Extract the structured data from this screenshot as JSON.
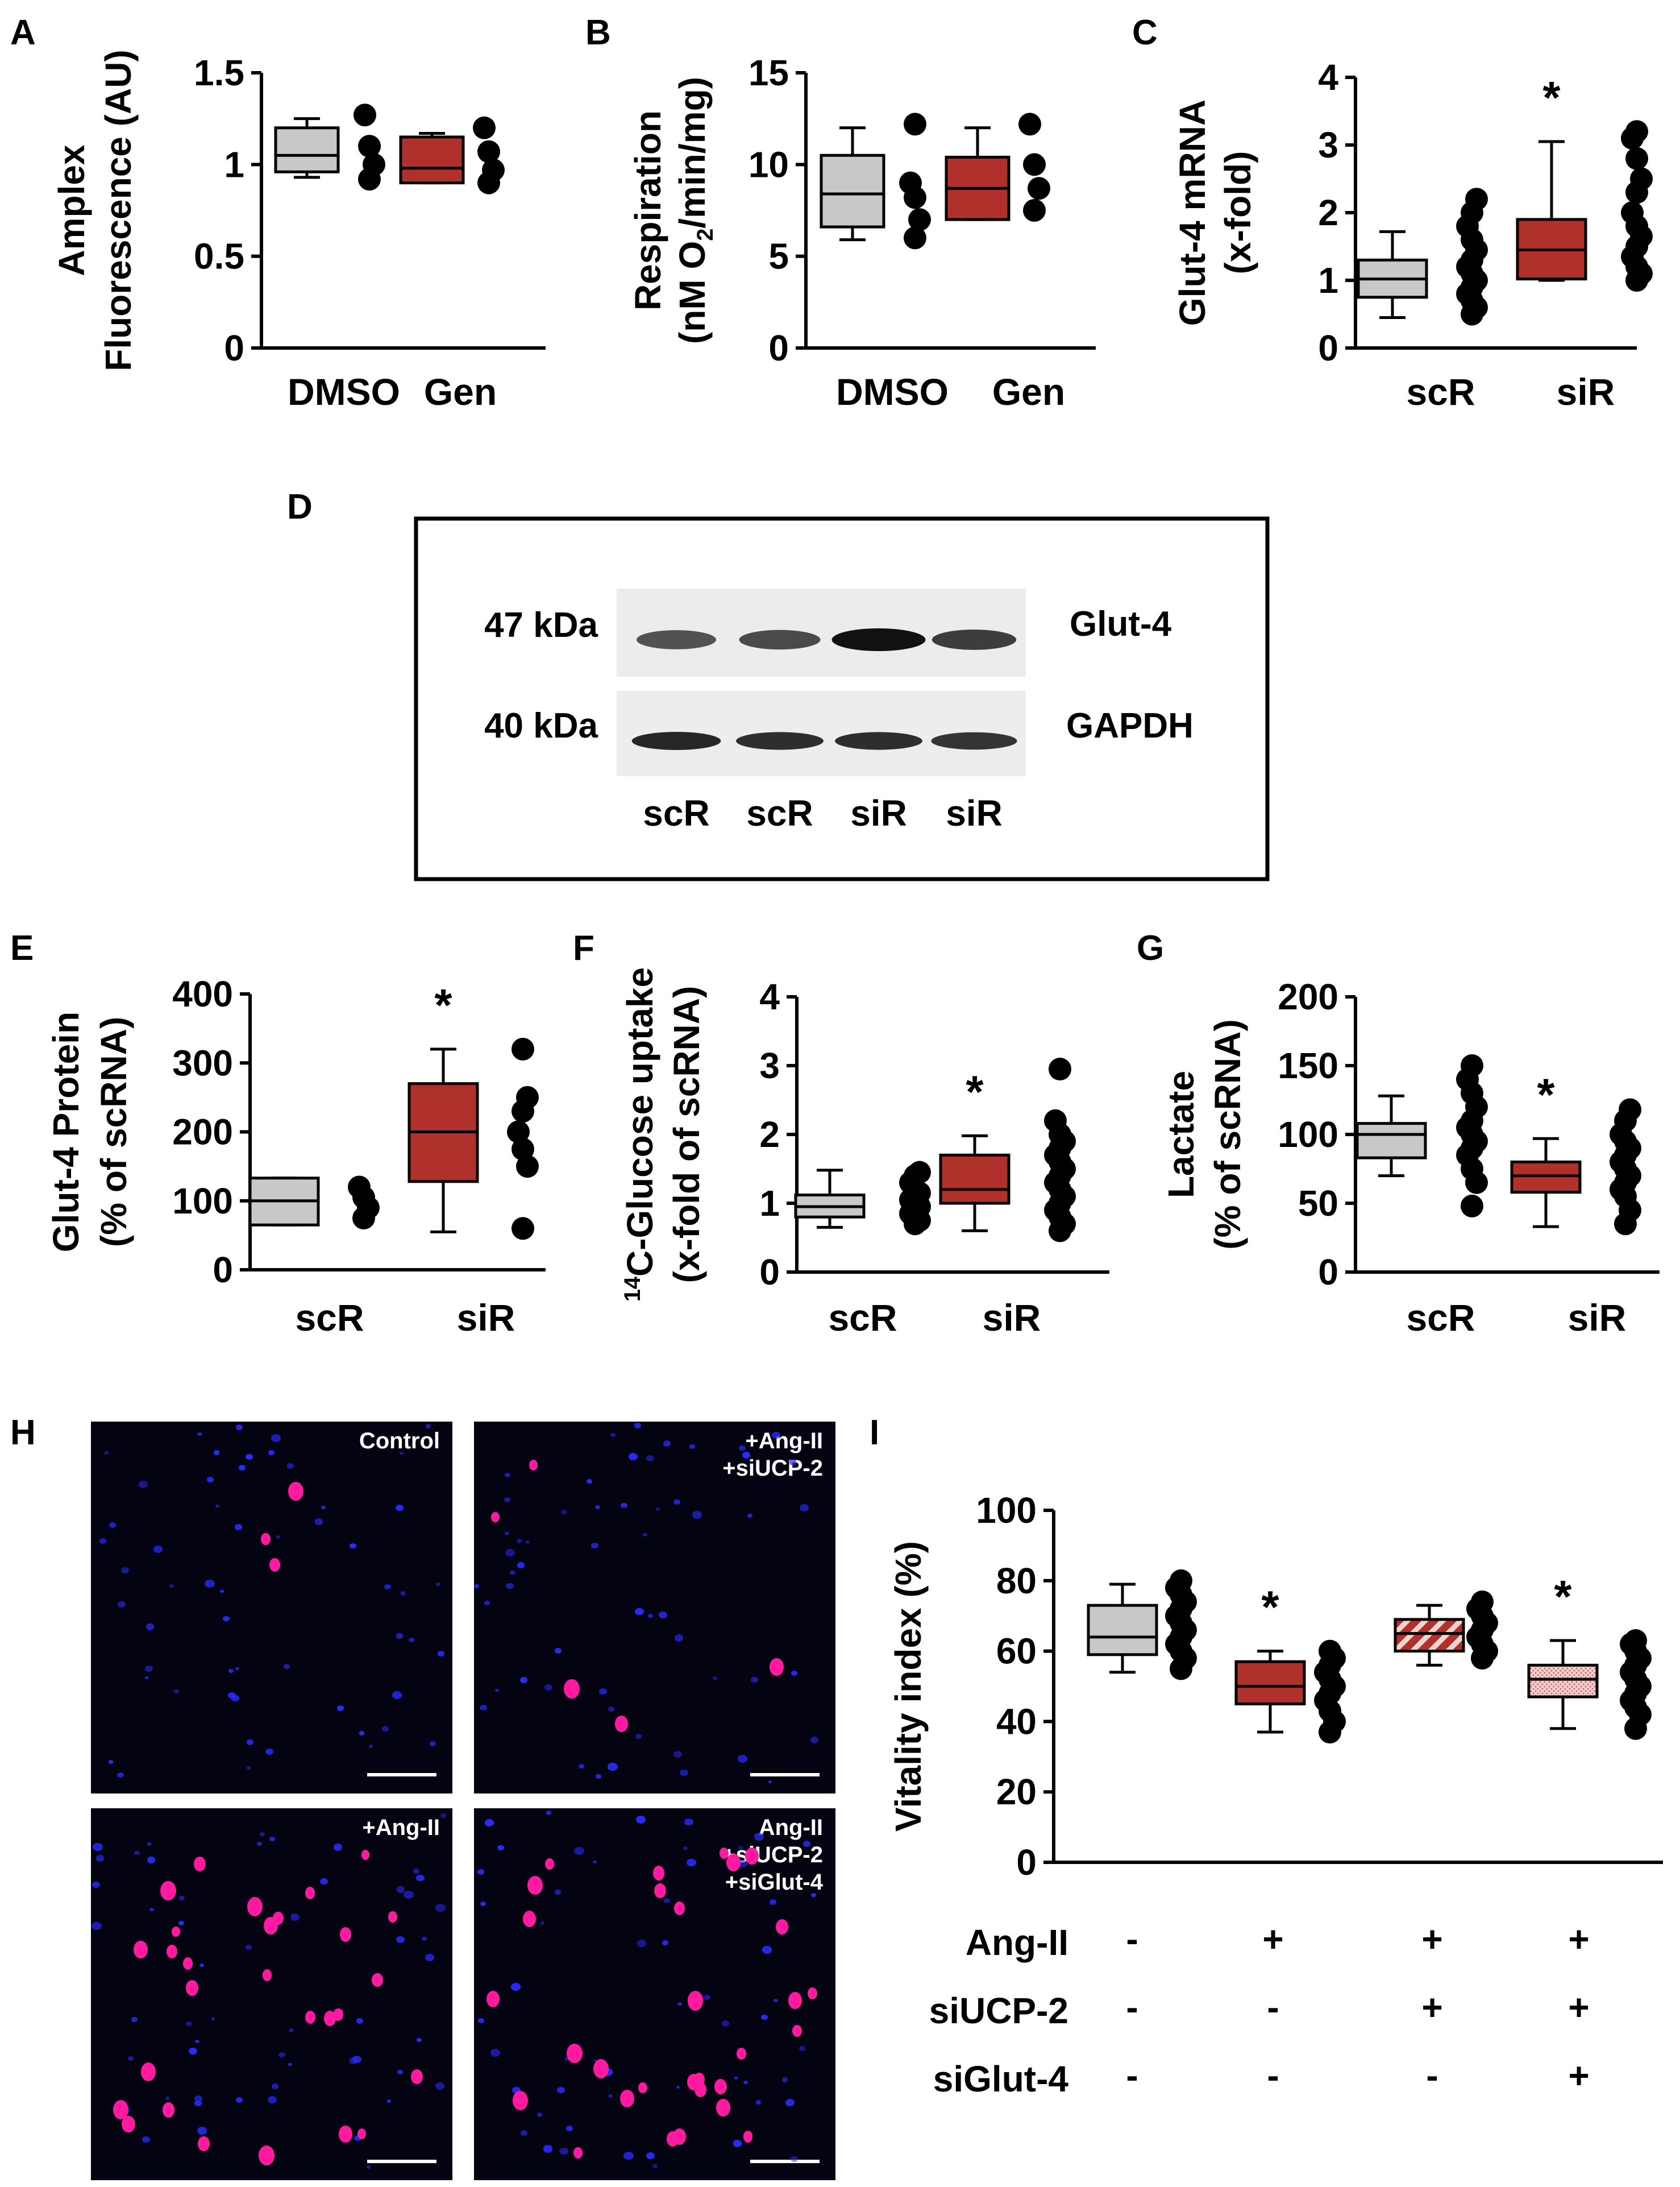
{
  "panel_letters": [
    "A",
    "B",
    "C",
    "D",
    "E",
    "F",
    "G",
    "H",
    "I"
  ],
  "colors": {
    "control": "#c8c8c8",
    "treated": "#b0302b",
    "dots": "#000000",
    "nuclei_blue": "#2a2cff",
    "nuclei_pink": "#ff1aa0"
  },
  "chart_data": [
    {
      "id": "A",
      "type": "box",
      "ylabel_lines": [
        "Amplex",
        "Fluorescence (AU)"
      ],
      "yticks": [
        "0",
        "0.5",
        "1",
        "1.5"
      ],
      "ylim": [
        0,
        1.5
      ],
      "categories": [
        "DMSO",
        "Gen"
      ],
      "boxes": [
        {
          "whisker_low": 0.93,
          "q1": 0.96,
          "median": 1.05,
          "q3": 1.2,
          "whisker_high": 1.25,
          "style": "control"
        },
        {
          "whisker_low": 0.9,
          "q1": 0.9,
          "median": 0.98,
          "q3": 1.15,
          "whisker_high": 1.17,
          "style": "treated"
        }
      ],
      "points": [
        [
          0.92,
          1.0,
          1.1,
          1.27
        ],
        [
          0.9,
          0.97,
          1.07,
          1.2
        ]
      ],
      "stars": []
    },
    {
      "id": "B",
      "type": "box",
      "ylabel_lines": [
        "Respiration",
        "(nM O2/min/mg)"
      ],
      "yticks": [
        "0",
        "5",
        "10",
        "15"
      ],
      "ylim": [
        0,
        15
      ],
      "categories": [
        "DMSO",
        "Gen"
      ],
      "boxes": [
        {
          "whisker_low": 5.9,
          "q1": 6.6,
          "median": 8.4,
          "q3": 10.5,
          "whisker_high": 12.0,
          "style": "control"
        },
        {
          "whisker_low": 7.0,
          "q1": 7.0,
          "median": 8.7,
          "q3": 10.4,
          "whisker_high": 12.0,
          "style": "treated"
        }
      ],
      "points": [
        [
          6.0,
          7.0,
          8.2,
          9.0,
          12.2
        ],
        [
          7.5,
          8.7,
          10.0,
          12.2
        ]
      ],
      "stars": []
    },
    {
      "id": "C",
      "type": "box",
      "ylabel_lines": [
        "Glut-4 mRNA",
        "(x-fold)"
      ],
      "yticks": [
        "0",
        "1",
        "2",
        "3",
        "4"
      ],
      "ylim": [
        0,
        4
      ],
      "categories": [
        "scR",
        "siR"
      ],
      "boxes": [
        {
          "whisker_low": 0.45,
          "q1": 0.75,
          "median": 1.02,
          "q3": 1.3,
          "whisker_high": 1.72,
          "style": "control"
        },
        {
          "whisker_low": 1.0,
          "q1": 1.02,
          "median": 1.45,
          "q3": 1.9,
          "whisker_high": 3.05,
          "style": "treated"
        }
      ],
      "points": [
        [
          0.5,
          0.6,
          0.7,
          0.8,
          0.9,
          1.0,
          1.1,
          1.2,
          1.3,
          1.45,
          1.6,
          1.8,
          2.0,
          2.2
        ],
        [
          1.0,
          1.1,
          1.2,
          1.35,
          1.5,
          1.65,
          1.8,
          2.0,
          2.3,
          2.5,
          2.8,
          3.1,
          3.2
        ]
      ],
      "stars": [
        1
      ]
    },
    {
      "id": "E",
      "type": "box",
      "ylabel_lines": [
        "Glut-4 Protein",
        "(% of scRNA)"
      ],
      "yticks": [
        "0",
        "100",
        "200",
        "300",
        "400"
      ],
      "ylim": [
        0,
        400
      ],
      "categories": [
        "scR",
        "siR"
      ],
      "boxes": [
        {
          "whisker_low": 65,
          "q1": 65,
          "median": 100,
          "q3": 133,
          "whisker_high": 133,
          "style": "control"
        },
        {
          "whisker_low": 55,
          "q1": 128,
          "median": 200,
          "q3": 270,
          "whisker_high": 320,
          "style": "treated"
        }
      ],
      "points": [
        [
          75,
          90,
          105,
          120
        ],
        [
          60,
          150,
          175,
          200,
          230,
          250,
          320
        ]
      ],
      "stars": [
        1
      ]
    },
    {
      "id": "F",
      "type": "box",
      "ylabel_lines": [
        "14C-Glucose uptake",
        "(x-fold of scRNA)"
      ],
      "yticks": [
        "0",
        "1",
        "2",
        "3",
        "4"
      ],
      "ylim": [
        0,
        4
      ],
      "categories": [
        "scR",
        "siR"
      ],
      "boxes": [
        {
          "whisker_low": 0.65,
          "q1": 0.8,
          "median": 0.95,
          "q3": 1.12,
          "whisker_high": 1.48,
          "style": "control"
        },
        {
          "whisker_low": 0.6,
          "q1": 1.0,
          "median": 1.2,
          "q3": 1.7,
          "whisker_high": 1.98,
          "style": "treated"
        }
      ],
      "points": [
        [
          0.7,
          0.75,
          0.8,
          0.85,
          0.9,
          0.95,
          1.0,
          1.05,
          1.1,
          1.15,
          1.2,
          1.3,
          1.4,
          1.45
        ],
        [
          0.6,
          0.7,
          0.8,
          0.9,
          1.0,
          1.1,
          1.2,
          1.3,
          1.4,
          1.5,
          1.6,
          1.7,
          1.8,
          1.9,
          2.0,
          2.2,
          2.95
        ]
      ],
      "stars": [
        1
      ]
    },
    {
      "id": "G",
      "type": "box",
      "ylabel_lines": [
        "Lactate",
        "(% of scRNA)"
      ],
      "yticks": [
        "0",
        "50",
        "100",
        "150",
        "200"
      ],
      "ylim": [
        0,
        200
      ],
      "categories": [
        "scR",
        "siR"
      ],
      "boxes": [
        {
          "whisker_low": 70,
          "q1": 83,
          "median": 100,
          "q3": 108,
          "whisker_high": 128,
          "style": "control"
        },
        {
          "whisker_low": 33,
          "q1": 58,
          "median": 70,
          "q3": 80,
          "whisker_high": 97,
          "style": "treated"
        }
      ],
      "points": [
        [
          48,
          65,
          75,
          85,
          90,
          95,
          100,
          105,
          110,
          120,
          130,
          140,
          150
        ],
        [
          35,
          45,
          55,
          60,
          65,
          70,
          75,
          80,
          85,
          90,
          95,
          100,
          110,
          118
        ]
      ],
      "stars": [
        1
      ]
    },
    {
      "id": "I",
      "type": "box",
      "ylabel_lines": [
        "Vitality index (%)"
      ],
      "yticks": [
        "0",
        "20",
        "40",
        "60",
        "80",
        "100"
      ],
      "ylim": [
        0,
        100
      ],
      "categories": [
        "",
        "",
        "",
        ""
      ],
      "boxes": [
        {
          "whisker_low": 54,
          "q1": 59,
          "median": 64,
          "q3": 73,
          "whisker_high": 79,
          "style": "control"
        },
        {
          "whisker_low": 37,
          "q1": 45,
          "median": 50,
          "q3": 57,
          "whisker_high": 60,
          "style": "treated"
        },
        {
          "whisker_low": 56,
          "q1": 60,
          "median": 65,
          "q3": 69,
          "whisker_high": 73,
          "style": "hatched-red"
        },
        {
          "whisker_low": 38,
          "q1": 47,
          "median": 52,
          "q3": 56,
          "whisker_high": 63,
          "style": "hatched-pink"
        }
      ],
      "points": [
        [
          55,
          58,
          60,
          62,
          64,
          66,
          68,
          70,
          72,
          74,
          76,
          78,
          80
        ],
        [
          37,
          40,
          43,
          46,
          48,
          50,
          52,
          54,
          56,
          58,
          60
        ],
        [
          58,
          60,
          62,
          64,
          66,
          68,
          70,
          72,
          74
        ],
        [
          38,
          42,
          44,
          46,
          48,
          50,
          52,
          54,
          56,
          58,
          60,
          62,
          63
        ]
      ],
      "stars": [
        1,
        3
      ]
    }
  ],
  "star_symbol": "*",
  "treatment_table": {
    "rows": [
      {
        "label": "Ang-II",
        "values": [
          "-",
          "+",
          "+",
          "+"
        ]
      },
      {
        "label": "siUCP-2",
        "values": [
          "-",
          "-",
          "+",
          "+"
        ]
      },
      {
        "label": "siGlut-4",
        "values": [
          "-",
          "-",
          "-",
          "+"
        ]
      }
    ]
  },
  "western_blot": {
    "bands": [
      {
        "kda": "47 kDa",
        "protein": "Glut-4",
        "intensity": [
          0.55,
          0.6,
          1.0,
          0.7
        ]
      },
      {
        "kda": "40 kDa",
        "protein": "GAPDH",
        "intensity": [
          0.85,
          0.8,
          0.8,
          0.75
        ]
      }
    ],
    "lanes": [
      "scR",
      "scR",
      "siR",
      "siR"
    ]
  },
  "micrographs": [
    {
      "label_lines": [
        "Control"
      ],
      "pink": 3
    },
    {
      "label_lines": [
        "+Ang-II",
        "+siUCP-2"
      ],
      "pink": 5
    },
    {
      "label_lines": [
        "+Ang-II"
      ],
      "pink": 28
    },
    {
      "label_lines": [
        "Ang-II",
        "+siUCP-2",
        "+siGlut-4"
      ],
      "pink": 30
    }
  ]
}
